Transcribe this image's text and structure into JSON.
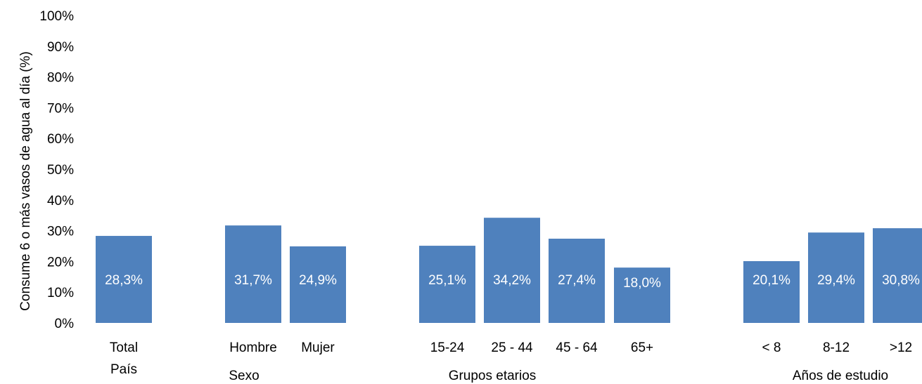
{
  "chart_data": {
    "type": "bar",
    "title": "",
    "ylabel": "Consume 6 o más vasos de agua al día (%)",
    "xlabel": "",
    "ylim": [
      0,
      100
    ],
    "yticks": [
      "0%",
      "10%",
      "20%",
      "30%",
      "40%",
      "50%",
      "60%",
      "70%",
      "80%",
      "90%",
      "100%"
    ],
    "grid": false,
    "legend": "none",
    "bar_color": "#4F81BD",
    "label_color": "#ffffff",
    "categories": [
      "Total País",
      "Hombre",
      "Mujer",
      "15-24",
      "25 - 44",
      "45 - 64",
      "65+",
      "< 8",
      "8-12",
      ">12"
    ],
    "values": [
      28.3,
      31.7,
      24.9,
      25.1,
      34.2,
      27.4,
      18.0,
      20.1,
      29.4,
      30.8
    ],
    "category_label_lines": [
      [
        "Total",
        "País"
      ],
      [
        "Hombre"
      ],
      [
        "Mujer"
      ],
      [
        "15-24"
      ],
      [
        "25 - 44"
      ],
      [
        "45 - 64"
      ],
      [
        "65+"
      ],
      [
        "< 8"
      ],
      [
        "8-12"
      ],
      [
        ">12"
      ]
    ],
    "data_labels": [
      "28,3%",
      "31,7%",
      "24,9%",
      "25,1%",
      "34,2%",
      "27,4%",
      "18,0%",
      "20,1%",
      "29,4%",
      "30,8%"
    ],
    "groups": [
      {
        "label": "Sexo",
        "members": [
          "Hombre",
          "Mujer"
        ]
      },
      {
        "label": "Grupos etarios",
        "members": [
          "15-24",
          "25 - 44",
          "45 - 64",
          "65+"
        ]
      },
      {
        "label": "Años de estudio",
        "members": [
          "< 8",
          "8-12",
          ">12"
        ]
      }
    ]
  }
}
